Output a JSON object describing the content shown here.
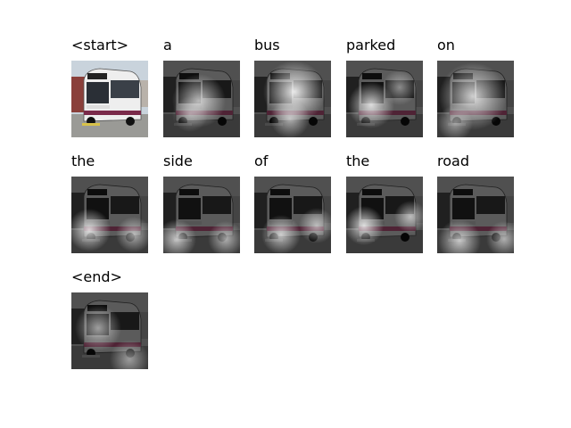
{
  "caption_words": [
    "<start>",
    "a",
    "bus",
    "parked",
    "on",
    "the",
    "side",
    "of",
    "the",
    "road",
    "<end>"
  ],
  "colors": {
    "background": "#ffffff",
    "bus_body": "#eeeeee",
    "bus_stripe": "#7a2a4a",
    "sky": "#c9d3dc",
    "building": "#8a3f3a",
    "road": "#9a9a96"
  }
}
